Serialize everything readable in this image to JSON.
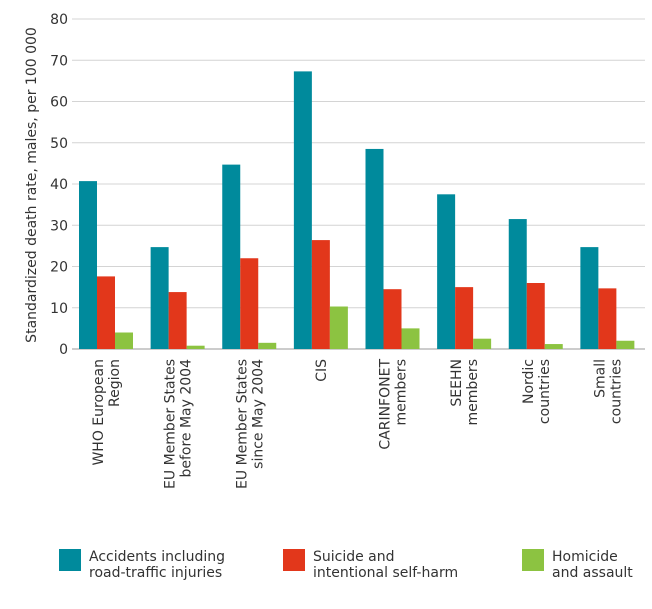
{
  "chart_data": {
    "type": "bar",
    "ylabel": "Standardized death rate, males, per 100 000",
    "xlabel": "",
    "ylim": [
      0,
      80
    ],
    "yticks": [
      0,
      10,
      20,
      30,
      40,
      50,
      60,
      70,
      80
    ],
    "grid": true,
    "legend_position": "bottom",
    "categories": [
      [
        "WHO European",
        "Region"
      ],
      [
        "EU Member States",
        "before May 2004"
      ],
      [
        "EU Member States",
        "since May 2004"
      ],
      [
        "CIS"
      ],
      [
        "CARINFONET",
        "members"
      ],
      [
        "SEEHN",
        "members"
      ],
      [
        "Nordic",
        "countries"
      ],
      [
        "Small",
        "countries"
      ]
    ],
    "series": [
      {
        "name": "Accidents including\nroad-traffic injuries",
        "color": "#008a9c",
        "values": [
          40.7,
          24.7,
          44.7,
          67.3,
          48.5,
          37.5,
          31.5,
          24.7
        ]
      },
      {
        "name": "Suicide and\nintentional self-harm",
        "color": "#e2371b",
        "values": [
          17.6,
          13.8,
          22.0,
          26.4,
          14.5,
          15.0,
          16.0,
          14.7
        ]
      },
      {
        "name": "Homicide\nand assault",
        "color": "#8cc341",
        "values": [
          4.0,
          0.8,
          1.5,
          10.3,
          5.0,
          2.5,
          1.2,
          2.0
        ]
      }
    ]
  }
}
